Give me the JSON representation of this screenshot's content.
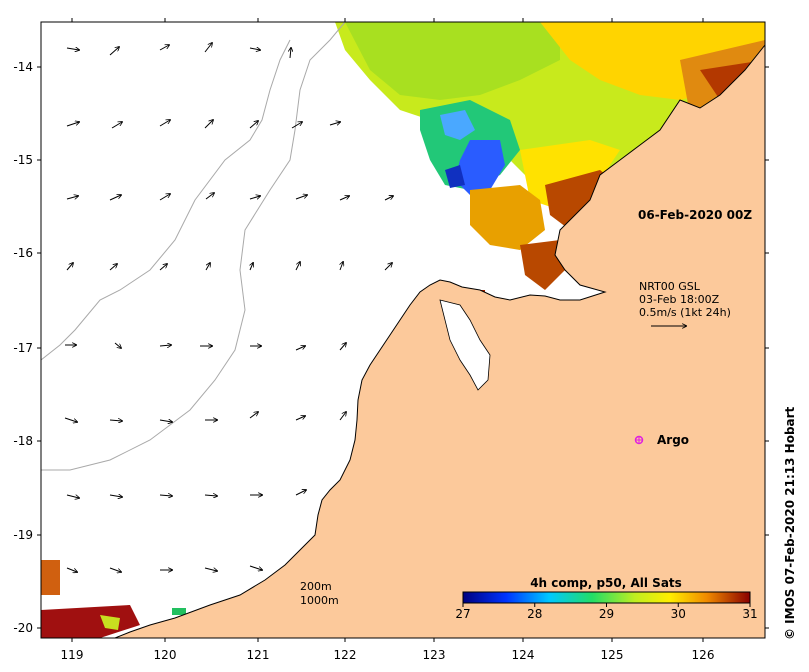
{
  "map": {
    "lon_ticks": [
      "119",
      "120",
      "121",
      "122",
      "123",
      "124",
      "125",
      "126"
    ],
    "lat_ticks": [
      "-14",
      "-15",
      "-16",
      "-17",
      "-18",
      "-19",
      "-20"
    ],
    "date_label": "06-Feb-2020 00Z",
    "current_legend": {
      "line1": "NRT00 GSL",
      "line2": "03-Feb 18:00Z",
      "line3": "0.5m/s (1kt 24h)"
    },
    "argo_label": "Argo",
    "bathymetry": {
      "line1": "200m",
      "line2": "1000m"
    },
    "colorbar": {
      "title": "4h comp, p50, All Sats",
      "ticks": [
        "27",
        "28",
        "29",
        "30",
        "31"
      ]
    },
    "credit": "© IMOS 07-Feb-2020 21:13 Hobart"
  },
  "colors": {
    "land": "#fcc99b",
    "coast": "#000000",
    "isobath": "#a9a9a9",
    "argo": "#e020e0"
  }
}
